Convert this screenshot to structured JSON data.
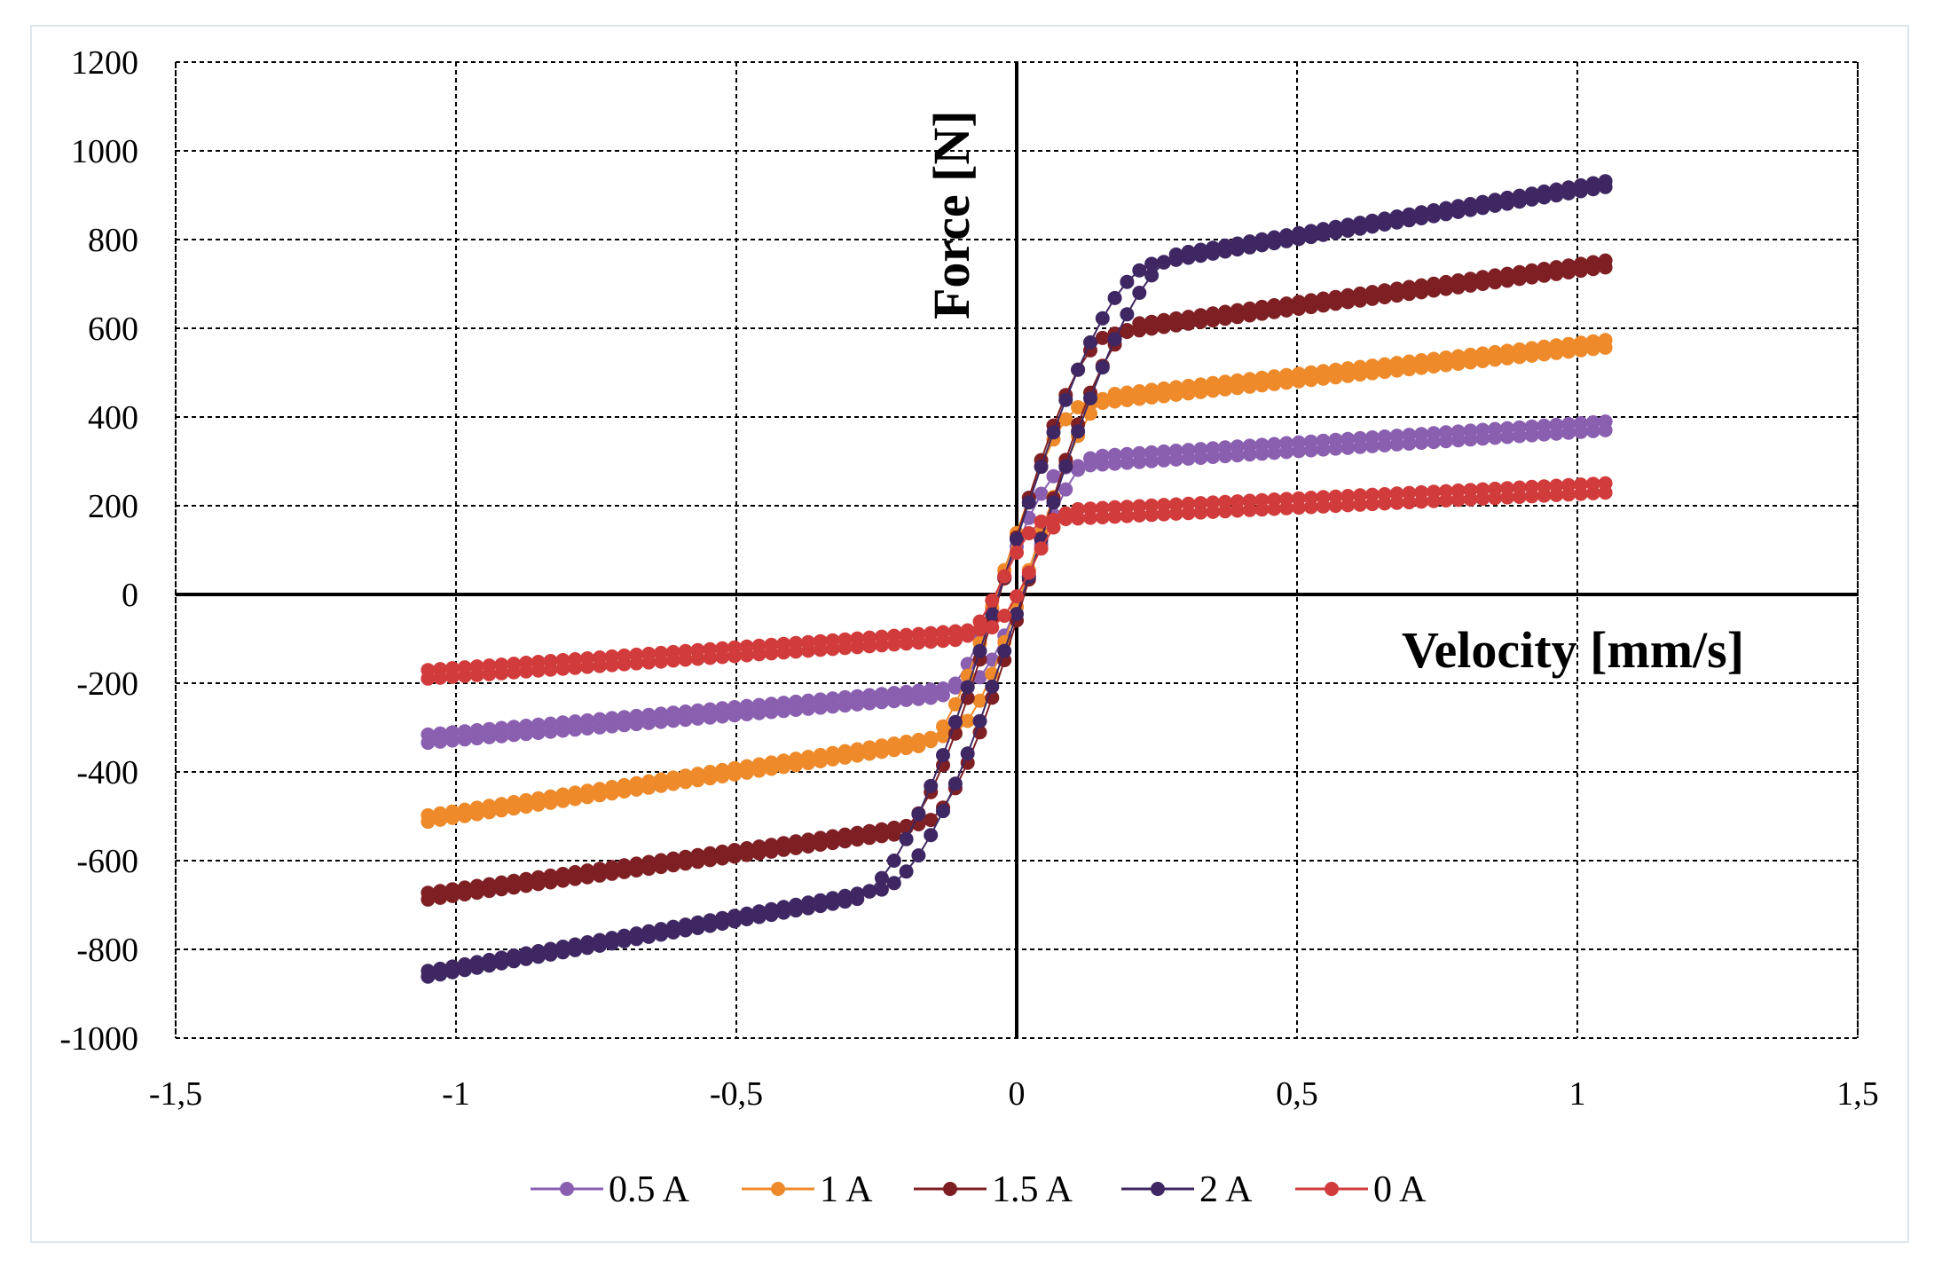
{
  "chart_data": {
    "type": "scatter",
    "title": "",
    "xlabel": "Velocity [mm/s]",
    "ylabel": "Force [N]",
    "xlim": [
      -1.5,
      1.5
    ],
    "ylim": [
      -1000,
      1200
    ],
    "x_ticks": [
      -1.5,
      -1,
      -0.5,
      0,
      0.5,
      1,
      1.5
    ],
    "x_tick_labels": [
      "-1,5",
      "-1",
      "-0,5",
      "0",
      "0,5",
      "1",
      "1,5"
    ],
    "y_ticks": [
      -1000,
      -800,
      -600,
      -400,
      -200,
      0,
      200,
      400,
      600,
      800,
      1000,
      1200
    ],
    "y_tick_labels": [
      "-1000",
      "-800",
      "-600",
      "-400",
      "-200",
      "0",
      "200",
      "400",
      "600",
      "800",
      "1000",
      "1200"
    ],
    "grid": true,
    "legend_position": "bottom",
    "series": [
      {
        "name": "0.5 A",
        "color": "#8a5fb0",
        "lower_end": -325,
        "lower_knee": -220,
        "upper_knee": 300,
        "upper_end": 380,
        "knee_v": 0.12
      },
      {
        "name": "1 A",
        "color": "#ee8a2a",
        "lower_end": -505,
        "lower_knee": -330,
        "upper_knee": 440,
        "upper_end": 565,
        "knee_v": 0.15
      },
      {
        "name": "1.5 A",
        "color": "#7e1f24",
        "lower_end": -680,
        "lower_knee": -530,
        "upper_knee": 600,
        "upper_end": 745,
        "knee_v": 0.2
      },
      {
        "name": "2 A",
        "color": "#3e2762",
        "lower_end": -855,
        "lower_knee": -680,
        "upper_knee": 760,
        "upper_end": 925,
        "knee_v": 0.28
      },
      {
        "name": "0 A",
        "color": "#d23b3b",
        "lower_end": -180,
        "lower_knee": -90,
        "upper_knee": 180,
        "upper_end": 240,
        "knee_v": 0.08
      }
    ],
    "v_range": [
      -1.05,
      1.05
    ]
  }
}
